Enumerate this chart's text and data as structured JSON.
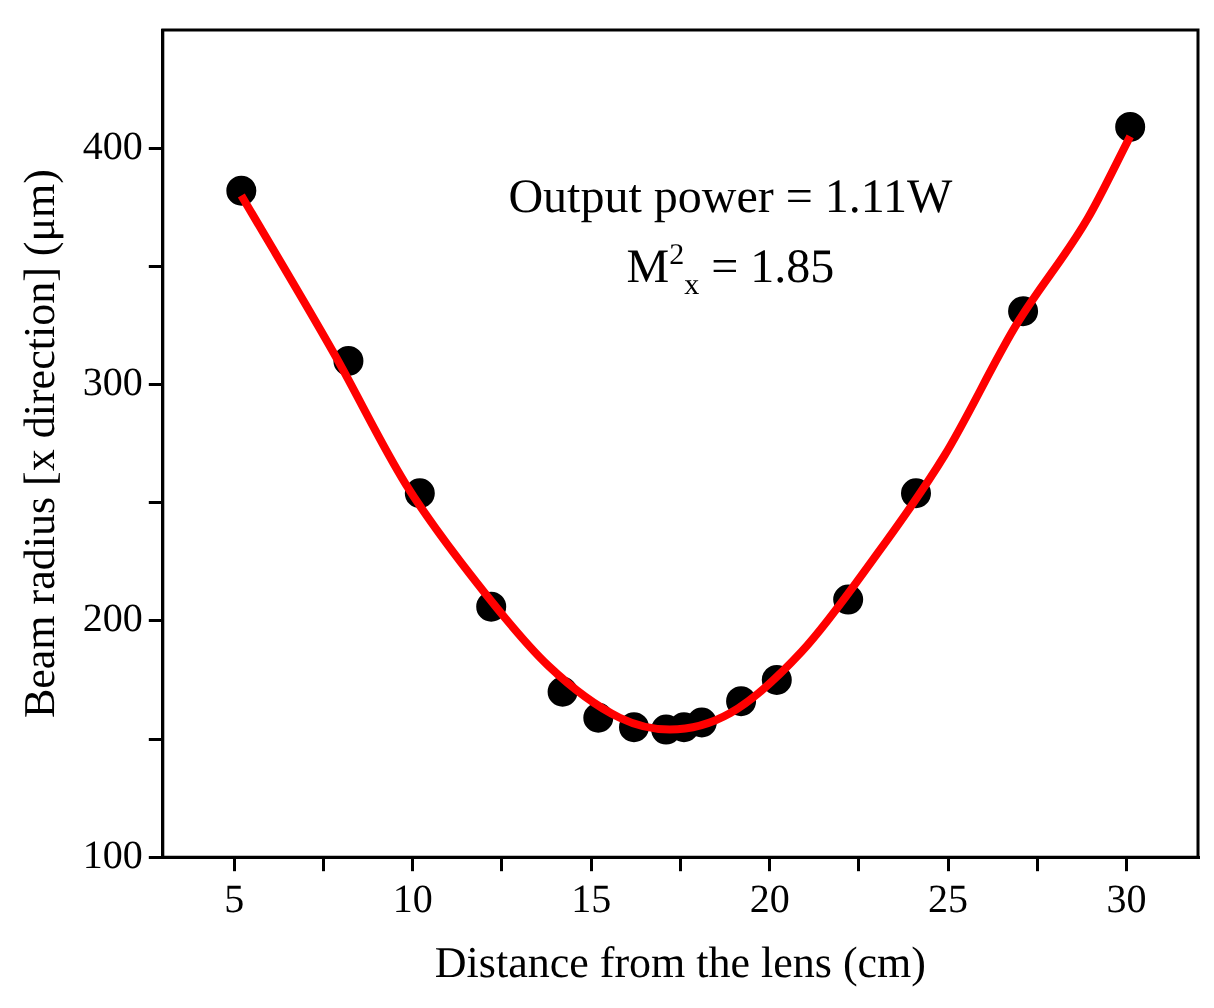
{
  "chart_data": {
    "type": "scatter",
    "xlabel": "Distance from the lens (cm)",
    "ylabel": "Beam radius [x direction] (μm)",
    "annotations": [
      "Output power = 1.11W",
      "M$^{2}$$_{x}$ = 1.85"
    ],
    "xlim": [
      3,
      32
    ],
    "xticks": [
      5,
      {
        "value": 7.5,
        "label": null
      },
      10,
      {
        "value": 12.5,
        "label": null
      },
      15,
      {
        "value": 17.5,
        "label": null
      },
      20,
      {
        "value": 22.5,
        "label": null
      },
      25,
      {
        "value": 27.5,
        "label": null
      },
      30
    ],
    "ylim": [
      100,
      450
    ],
    "yticks": [
      100,
      {
        "value": 150,
        "label": null
      },
      200,
      {
        "value": 250,
        "label": null
      },
      300,
      {
        "value": 350,
        "label": null
      },
      400
    ],
    "grid": false,
    "legend": false,
    "marker": "circle",
    "series": [
      {
        "color": "#000000",
        "x": [
          5.2,
          8.2,
          10.2,
          12.2,
          14.2,
          15.2,
          16.2,
          17.1,
          17.6,
          18.1,
          19.2,
          20.2,
          22.2,
          24.1,
          27.1,
          30.1
        ],
        "values": [
          382,
          310,
          254,
          206,
          170,
          159,
          155,
          154,
          155,
          157,
          166,
          175,
          209,
          254,
          331,
          409
        ]
      },
      {
        "type": "line",
        "color": "#ff0000",
        "marker": "none",
        "line_style": "solid",
        "x": [
          5.2,
          7.8,
          9.8,
          11.8,
          13.8,
          15.8,
          17.2,
          18.9,
          20.9,
          22.9,
          24.9,
          26.9,
          28.9,
          30.1
        ],
        "values": [
          380,
          313,
          258,
          216,
          181,
          159,
          154,
          161,
          187,
          226,
          270,
          325,
          370,
          405
        ]
      }
    ]
  }
}
